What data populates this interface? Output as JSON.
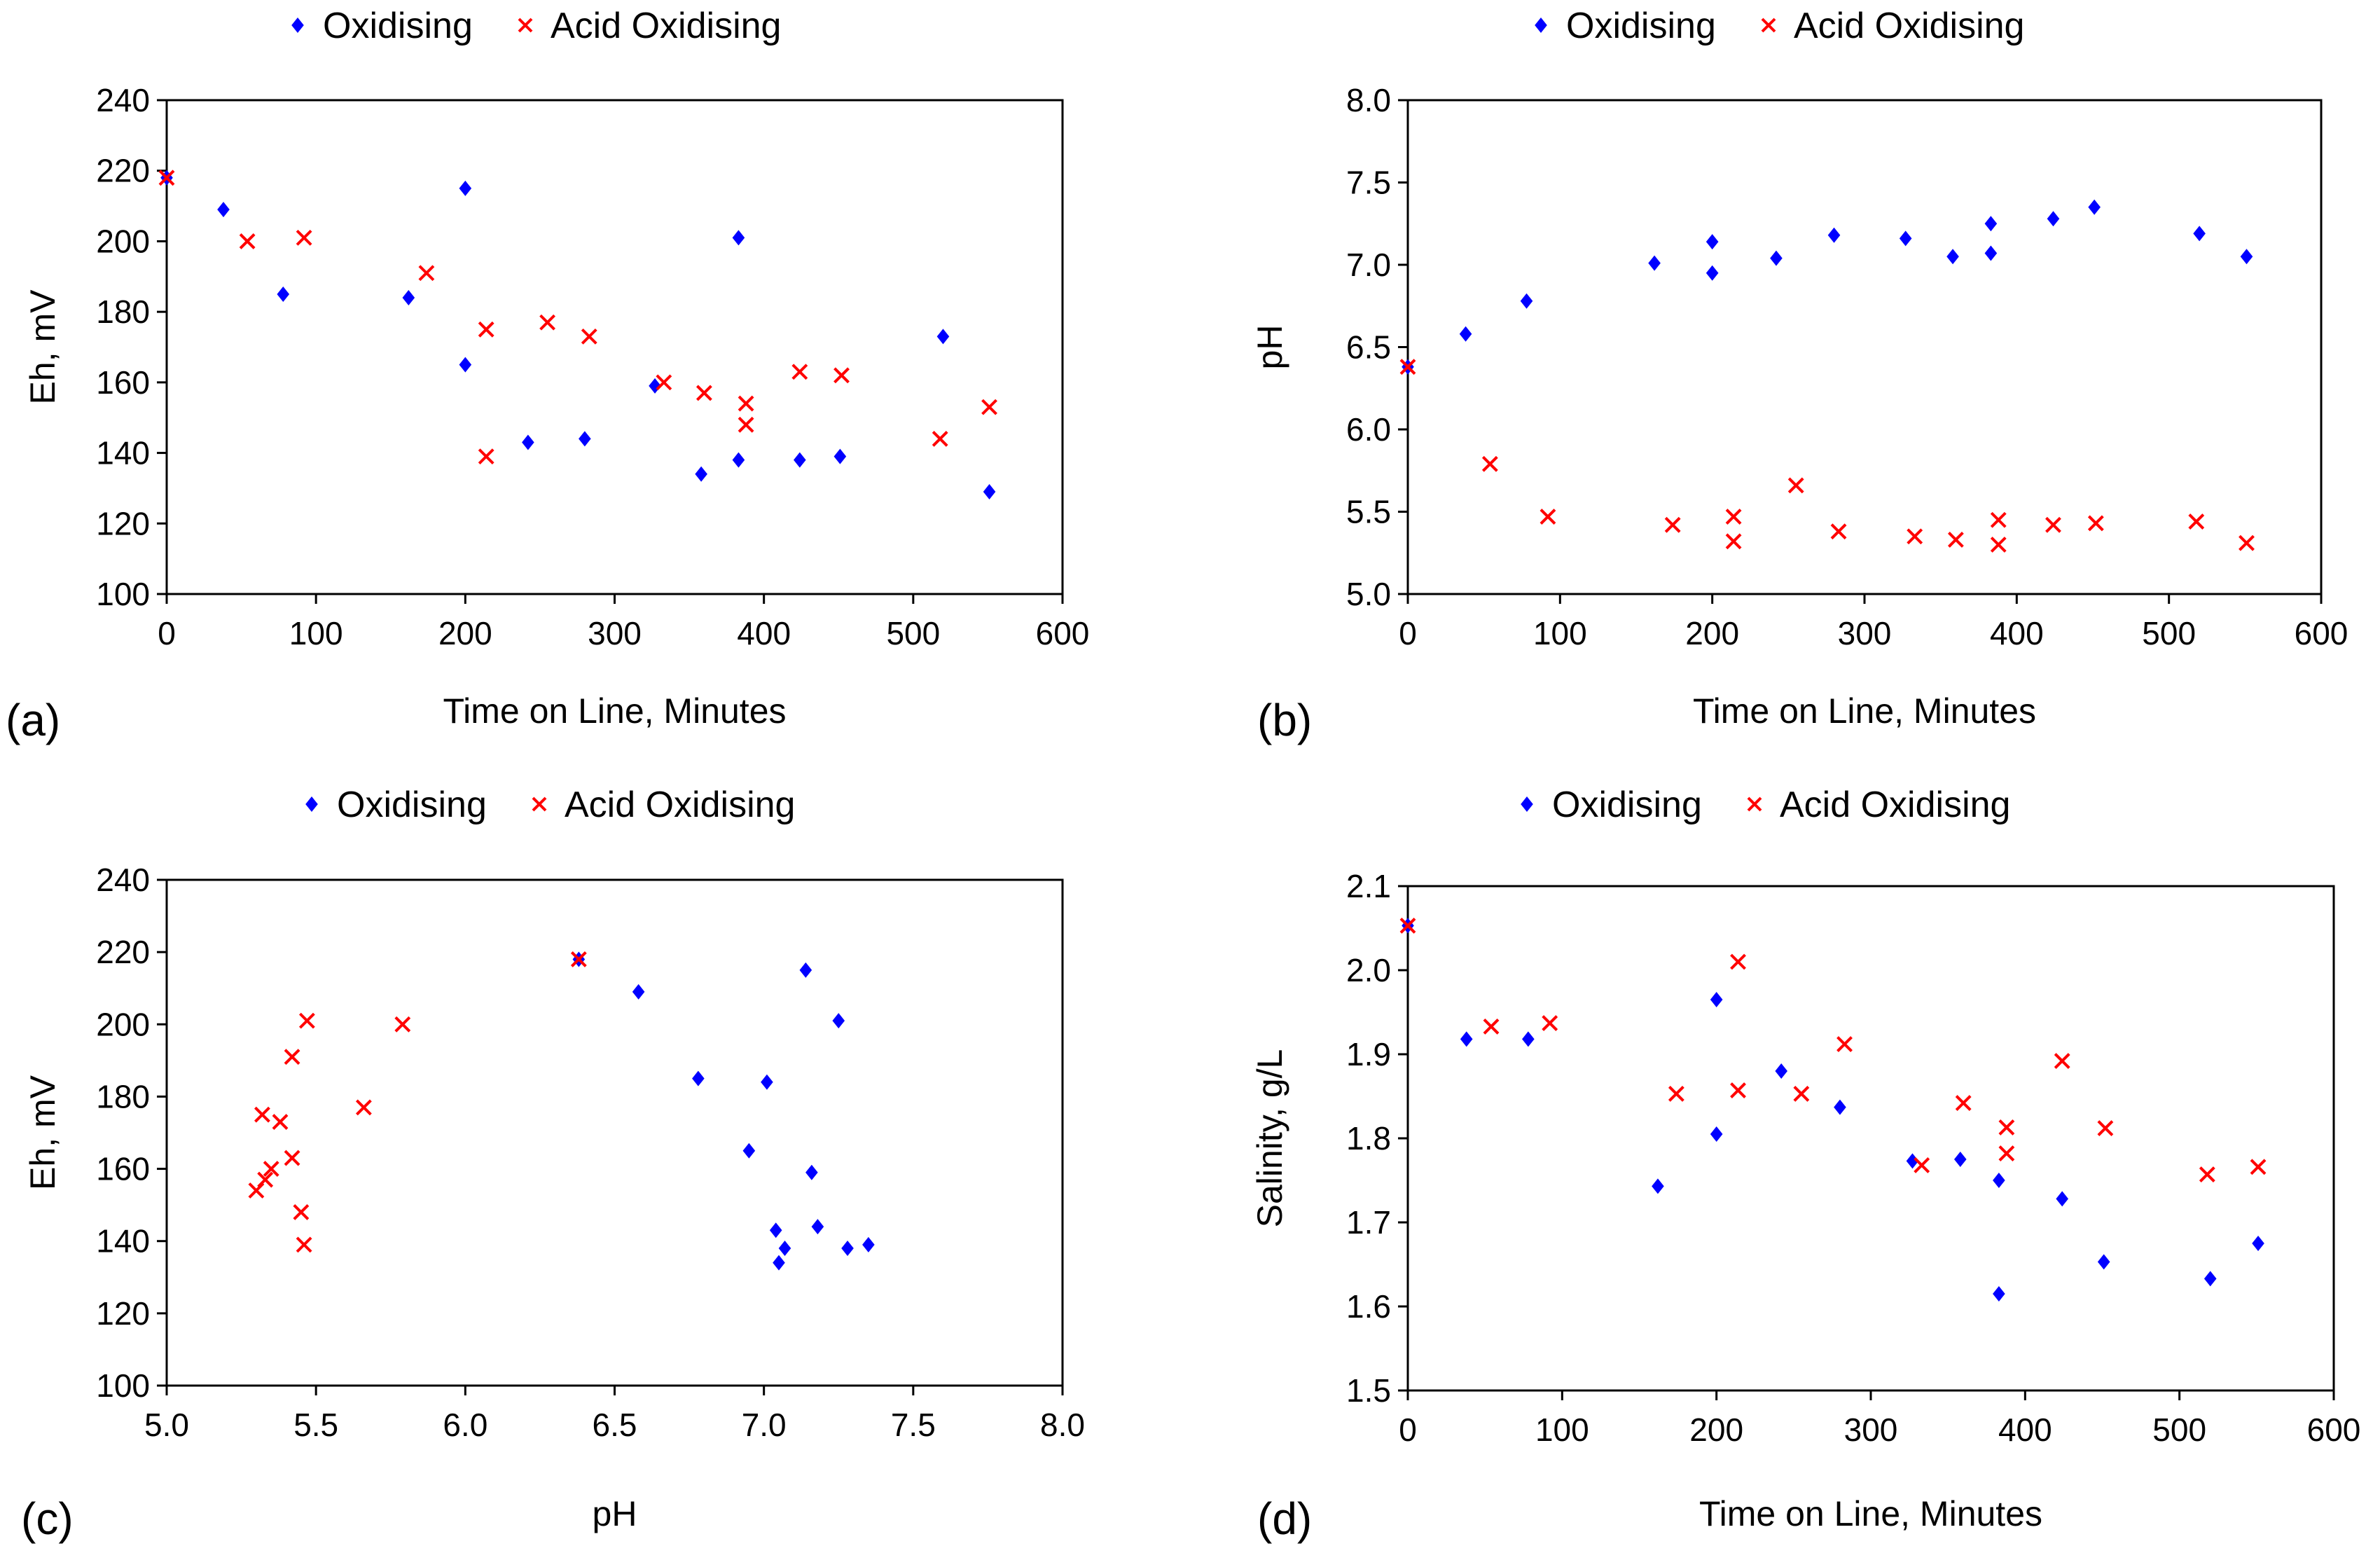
{
  "colors": {
    "oxidising": "#0000ff",
    "acid_oxidising": "#ff0000",
    "frame": "#000000"
  },
  "chart_data": [
    {
      "panel_label": "(a)",
      "type": "scatter",
      "title": "",
      "xlabel": "Time on Line, Minutes",
      "ylabel": "Eh, mV",
      "xlim": [
        0,
        600
      ],
      "ylim": [
        100,
        240
      ],
      "xticks": [
        0,
        100,
        200,
        300,
        400,
        500,
        600
      ],
      "yticks": [
        100,
        120,
        140,
        160,
        180,
        200,
        220,
        240
      ],
      "tick_decimals": {
        "x": 0,
        "y": 0
      },
      "grid": false,
      "legend_position": "top",
      "series": [
        {
          "name": "Oxidising",
          "marker": "diamond",
          "points": [
            [
              0,
              218
            ],
            [
              38,
              209
            ],
            [
              78,
              185
            ],
            [
              162,
              184
            ],
            [
              200,
              215
            ],
            [
              200,
              165
            ],
            [
              242,
              143
            ],
            [
              280,
              144
            ],
            [
              327,
              159
            ],
            [
              358,
              134
            ],
            [
              383,
              201
            ],
            [
              383,
              138
            ],
            [
              424,
              138
            ],
            [
              451,
              139
            ],
            [
              520,
              173
            ],
            [
              551,
              129
            ]
          ]
        },
        {
          "name": "Acid Oxidising",
          "marker": "cross",
          "points": [
            [
              0,
              218
            ],
            [
              54,
              200
            ],
            [
              92,
              201
            ],
            [
              174,
              191
            ],
            [
              214,
              175
            ],
            [
              214,
              139
            ],
            [
              255,
              177
            ],
            [
              283,
              173
            ],
            [
              333,
              160
            ],
            [
              360,
              157
            ],
            [
              388,
              154
            ],
            [
              388,
              148
            ],
            [
              424,
              163
            ],
            [
              452,
              162
            ],
            [
              518,
              144
            ],
            [
              551,
              153
            ]
          ]
        }
      ]
    },
    {
      "panel_label": "(b)",
      "type": "scatter",
      "title": "",
      "xlabel": "Time on Line, Minutes",
      "ylabel": "pH",
      "xlim": [
        0,
        600
      ],
      "ylim": [
        5.0,
        8.0
      ],
      "xticks": [
        0,
        100,
        200,
        300,
        400,
        500,
        600
      ],
      "yticks": [
        5.0,
        5.5,
        6.0,
        6.5,
        7.0,
        7.5,
        8.0
      ],
      "tick_decimals": {
        "x": 0,
        "y": 1
      },
      "grid": false,
      "legend_position": "top",
      "series": [
        {
          "name": "Oxidising",
          "marker": "diamond",
          "points": [
            [
              0,
              6.38
            ],
            [
              38,
              6.58
            ],
            [
              78,
              6.78
            ],
            [
              162,
              7.01
            ],
            [
              200,
              7.14
            ],
            [
              200,
              6.95
            ],
            [
              242,
              7.04
            ],
            [
              280,
              7.18
            ],
            [
              327,
              7.16
            ],
            [
              358,
              7.05
            ],
            [
              383,
              7.25
            ],
            [
              383,
              7.07
            ],
            [
              424,
              7.28
            ],
            [
              451,
              7.35
            ],
            [
              520,
              7.19
            ],
            [
              551,
              7.05
            ]
          ]
        },
        {
          "name": "Acid Oxidising",
          "marker": "cross",
          "points": [
            [
              0,
              6.38
            ],
            [
              54,
              5.79
            ],
            [
              92,
              5.47
            ],
            [
              174,
              5.42
            ],
            [
              214,
              5.47
            ],
            [
              214,
              5.32
            ],
            [
              255,
              5.66
            ],
            [
              283,
              5.38
            ],
            [
              333,
              5.35
            ],
            [
              360,
              5.33
            ],
            [
              388,
              5.45
            ],
            [
              388,
              5.3
            ],
            [
              424,
              5.42
            ],
            [
              452,
              5.43
            ],
            [
              518,
              5.44
            ],
            [
              551,
              5.31
            ]
          ]
        }
      ]
    },
    {
      "panel_label": "(c)",
      "type": "scatter",
      "title": "",
      "xlabel": "pH",
      "ylabel": "Eh, mV",
      "xlim": [
        5.0,
        8.0
      ],
      "ylim": [
        100,
        240
      ],
      "xticks": [
        5.0,
        5.5,
        6.0,
        6.5,
        7.0,
        7.5,
        8.0
      ],
      "yticks": [
        100,
        120,
        140,
        160,
        180,
        200,
        220,
        240
      ],
      "tick_decimals": {
        "x": 1,
        "y": 0
      },
      "grid": false,
      "legend_position": "top",
      "series": [
        {
          "name": "Oxidising",
          "marker": "diamond",
          "points": [
            [
              6.38,
              218
            ],
            [
              6.58,
              209
            ],
            [
              6.78,
              185
            ],
            [
              7.01,
              184
            ],
            [
              7.14,
              215
            ],
            [
              6.95,
              165
            ],
            [
              7.04,
              143
            ],
            [
              7.18,
              144
            ],
            [
              7.16,
              159
            ],
            [
              7.05,
              134
            ],
            [
              7.25,
              201
            ],
            [
              7.07,
              138
            ],
            [
              7.28,
              138
            ],
            [
              7.35,
              139
            ]
          ]
        },
        {
          "name": "Acid Oxidising",
          "marker": "cross",
          "points": [
            [
              6.38,
              218
            ],
            [
              5.79,
              200
            ],
            [
              5.47,
              201
            ],
            [
              5.42,
              191
            ],
            [
              5.32,
              175
            ],
            [
              5.46,
              139
            ],
            [
              5.66,
              177
            ],
            [
              5.38,
              173
            ],
            [
              5.35,
              160
            ],
            [
              5.33,
              157
            ],
            [
              5.45,
              148
            ],
            [
              5.3,
              154
            ],
            [
              5.42,
              163
            ]
          ]
        }
      ]
    },
    {
      "panel_label": "(d)",
      "type": "scatter",
      "title": "",
      "xlabel": "Time on Line, Minutes",
      "ylabel": "Salinity, g/L",
      "xlim": [
        0,
        600
      ],
      "ylim": [
        1.5,
        2.1
      ],
      "xticks": [
        0,
        100,
        200,
        300,
        400,
        500,
        600
      ],
      "yticks": [
        1.5,
        1.6,
        1.7,
        1.8,
        1.9,
        2.0,
        2.1
      ],
      "tick_decimals": {
        "x": 0,
        "y": 1
      },
      "grid": false,
      "legend_position": "top",
      "series": [
        {
          "name": "Oxidising",
          "marker": "diamond",
          "points": [
            [
              0,
              2.053
            ],
            [
              38,
              1.918
            ],
            [
              78,
              1.918
            ],
            [
              162,
              1.743
            ],
            [
              200,
              1.965
            ],
            [
              200,
              1.805
            ],
            [
              242,
              1.88
            ],
            [
              280,
              1.837
            ],
            [
              327,
              1.773
            ],
            [
              358,
              1.775
            ],
            [
              383,
              1.75
            ],
            [
              383,
              1.615
            ],
            [
              424,
              1.728
            ],
            [
              451,
              1.653
            ],
            [
              520,
              1.633
            ],
            [
              551,
              1.675
            ]
          ]
        },
        {
          "name": "Acid Oxidising",
          "marker": "cross",
          "points": [
            [
              0,
              2.053
            ],
            [
              54,
              1.933
            ],
            [
              92,
              1.937
            ],
            [
              174,
              1.853
            ],
            [
              214,
              2.01
            ],
            [
              214,
              1.857
            ],
            [
              255,
              1.853
            ],
            [
              283,
              1.912
            ],
            [
              333,
              1.768
            ],
            [
              360,
              1.842
            ],
            [
              388,
              1.813
            ],
            [
              388,
              1.782
            ],
            [
              424,
              1.892
            ],
            [
              452,
              1.812
            ],
            [
              518,
              1.757
            ],
            [
              551,
              1.766
            ]
          ]
        }
      ]
    }
  ]
}
